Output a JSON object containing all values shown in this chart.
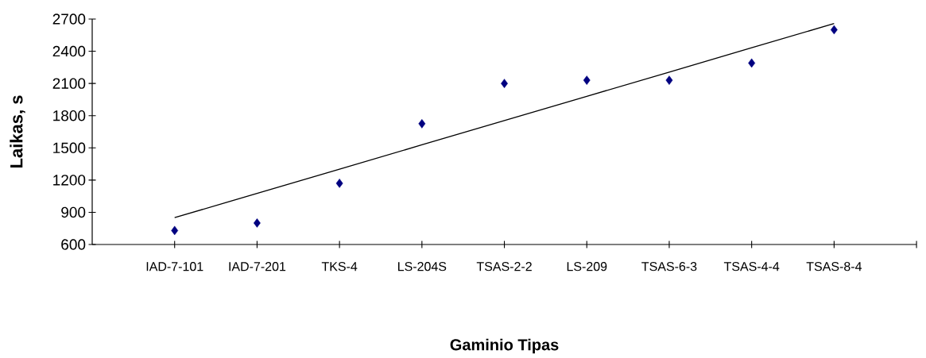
{
  "chart_data": {
    "type": "scatter",
    "xlabel": "Gaminio Tipas",
    "ylabel": "Laikas, s",
    "categories": [
      "IAD-7-101",
      "IAD-7-201",
      "TKS-4",
      "LS-204S",
      "TSAS-2-2",
      "LS-209",
      "TSAS-6-3",
      "TSAS-4-4",
      "TSAS-8-4"
    ],
    "series": [
      {
        "color": "#000080",
        "marker": "diamond",
        "values": [
          730,
          800,
          1170,
          1725,
          2100,
          2130,
          2130,
          2290,
          2600
        ]
      },
      {
        "type": "line",
        "color": "#000000",
        "marker": "none",
        "line_style": "solid",
        "values": [
          850,
          1076,
          1302,
          1528,
          1754,
          1980,
          2206,
          2432,
          2658
        ]
      }
    ],
    "ylim": [
      600,
      2700
    ],
    "yticks": [
      600,
      900,
      1200,
      1500,
      1800,
      2100,
      2400,
      2700
    ],
    "grid": false
  }
}
